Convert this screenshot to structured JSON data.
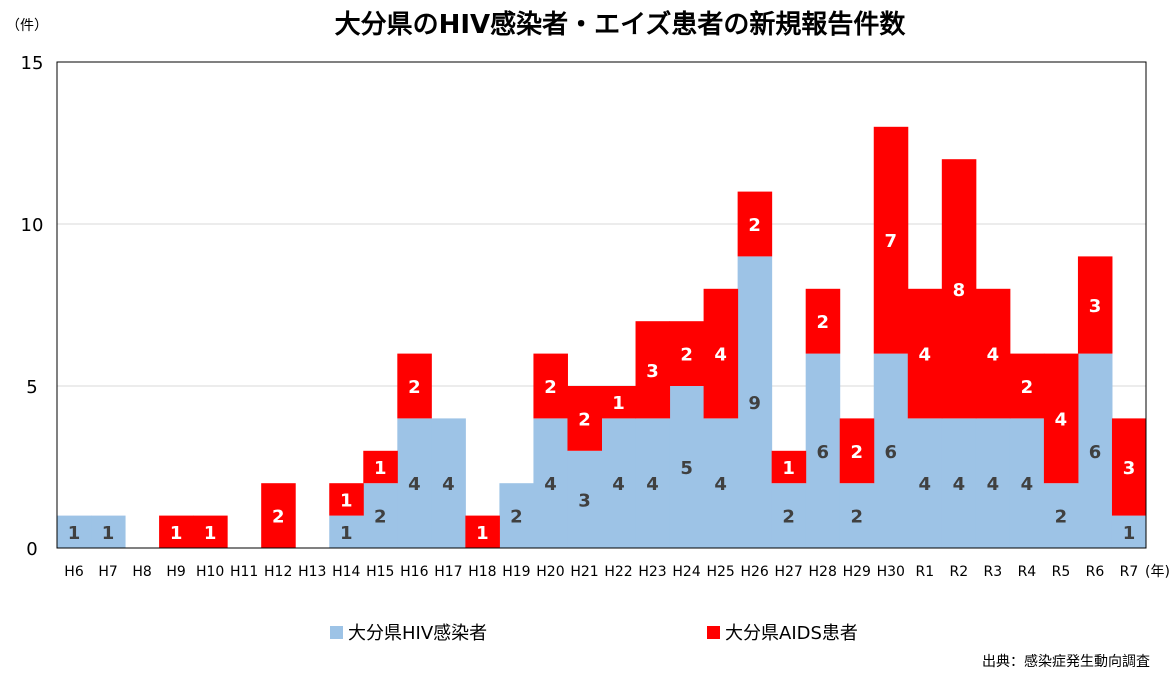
{
  "chart_data": {
    "type": "bar",
    "stacked": true,
    "title": "大分県のHIV感染者・エイズ患者の新規報告件数",
    "ylabel": "（件）",
    "xlabel": "(年)",
    "ylim": [
      0,
      15
    ],
    "yticks": [
      0,
      5,
      10,
      15
    ],
    "grid": true,
    "legend_position": "bottom",
    "categories": [
      "H6",
      "H7",
      "H8",
      "H9",
      "H10",
      "H11",
      "H12",
      "H13",
      "H14",
      "H15",
      "H16",
      "H17",
      "H18",
      "H19",
      "H20",
      "H21",
      "H22",
      "H23",
      "H24",
      "H25",
      "H26",
      "H27",
      "H28",
      "H29",
      "H30",
      "R1",
      "R2",
      "R3",
      "R4",
      "R5",
      "R6",
      "R7"
    ],
    "series": [
      {
        "name": "大分県HIV感染者",
        "color": "#9dc3e6",
        "label_color": "#404040",
        "values": [
          1,
          1,
          0,
          0,
          0,
          0,
          0,
          0,
          1,
          2,
          4,
          4,
          0,
          2,
          4,
          3,
          4,
          4,
          5,
          4,
          9,
          2,
          6,
          2,
          6,
          4,
          4,
          4,
          4,
          2,
          6,
          1
        ]
      },
      {
        "name": "大分県AIDS患者",
        "color": "#ff0000",
        "label_color": "#ffffff",
        "values": [
          0,
          0,
          0,
          1,
          1,
          0,
          2,
          0,
          1,
          1,
          2,
          0,
          1,
          0,
          2,
          2,
          1,
          3,
          2,
          4,
          2,
          1,
          2,
          2,
          7,
          4,
          8,
          4,
          2,
          4,
          3,
          3
        ]
      }
    ],
    "source": "出典：感染症発生動向調査"
  }
}
